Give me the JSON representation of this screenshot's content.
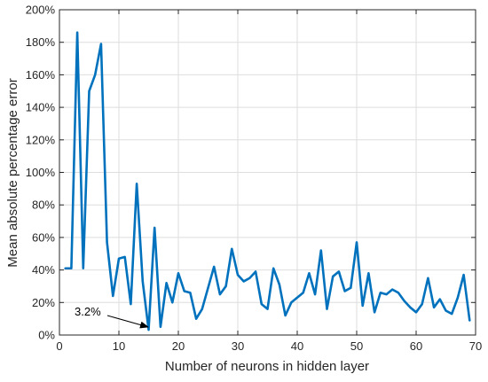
{
  "chart_data": {
    "type": "line",
    "title": "",
    "xlabel": "Number of neurons in hidden layer",
    "ylabel": "Mean absolute percentage error",
    "xlim": [
      0,
      70
    ],
    "ylim": [
      0,
      200
    ],
    "x_ticks": [
      0,
      10,
      20,
      30,
      40,
      50,
      60,
      70
    ],
    "x_tick_labels": [
      "0",
      "10",
      "20",
      "30",
      "40",
      "50",
      "60",
      "70"
    ],
    "y_ticks": [
      0,
      20,
      40,
      60,
      80,
      100,
      120,
      140,
      160,
      180,
      200
    ],
    "y_tick_labels": [
      "0%",
      "20%",
      "40%",
      "60%",
      "80%",
      "100%",
      "120%",
      "140%",
      "160%",
      "180%",
      "200%"
    ],
    "grid": true,
    "line_color": "#0072BD",
    "series": [
      {
        "x": [
          1,
          2,
          3,
          4,
          5,
          6,
          7,
          8,
          9,
          10,
          11,
          12,
          13,
          14,
          15,
          16,
          17,
          18,
          19,
          20,
          21,
          22,
          23,
          24,
          25,
          26,
          27,
          28,
          29,
          30,
          31,
          32,
          33,
          34,
          35,
          36,
          37,
          38,
          39,
          40,
          41,
          42,
          43,
          44,
          45,
          46,
          47,
          48,
          49,
          50,
          51,
          52,
          53,
          54,
          55,
          56,
          57,
          58,
          59,
          60,
          61,
          62,
          63,
          64,
          65,
          66,
          67,
          68,
          69
        ],
        "values": [
          41,
          41,
          186,
          41,
          150,
          160,
          179,
          57,
          24,
          47,
          48,
          19,
          93,
          33,
          3.2,
          66,
          5,
          32,
          20,
          38,
          27,
          26,
          10,
          16,
          29,
          42,
          25,
          30,
          53,
          37,
          33,
          35,
          39,
          19,
          16,
          41,
          31,
          12,
          20,
          23,
          26,
          38,
          25,
          52,
          16,
          36,
          39,
          27,
          29,
          57,
          18,
          38,
          14,
          26,
          25,
          28,
          26,
          21,
          17,
          14,
          19,
          35,
          17,
          22,
          15,
          13,
          23,
          37,
          9
        ]
      }
    ],
    "annotations": [
      {
        "text": "3.2%",
        "x": 15,
        "y": 3.2
      }
    ]
  }
}
